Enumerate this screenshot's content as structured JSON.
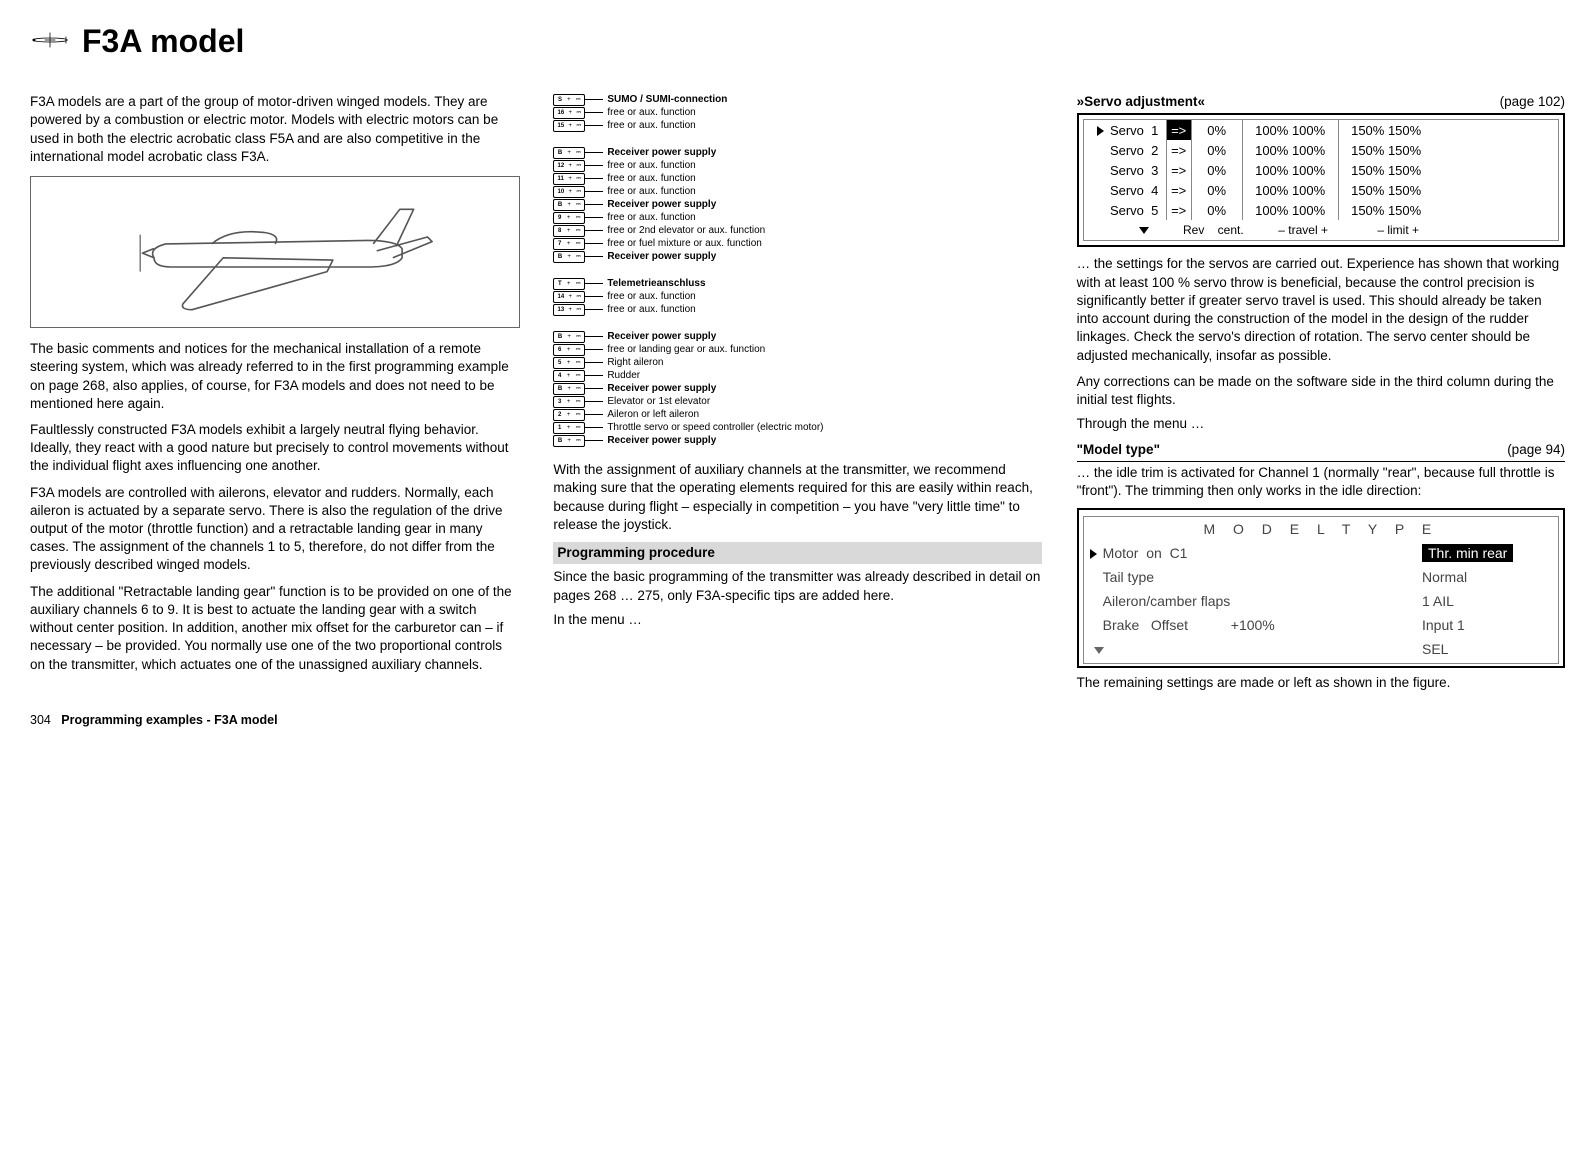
{
  "header": {
    "title": "F3A model"
  },
  "col1": {
    "p1": "F3A models are a part of the group of motor-driven winged models. They are powered by a combustion or electric motor. Models with electric motors can be used in both the electric acrobatic class F5A and are also competitive in the international model acrobatic class F3A.",
    "p2": "The basic comments and notices for the mechanical installation of a remote steering system, which was already referred to in the first programming example on page 268, also applies, of course, for F3A models and does not need to be mentioned here again.",
    "p3": "Faultlessly constructed F3A models exhibit a largely neutral flying behavior. Ideally, they react with a good nature but precisely to control movements without the individual flight axes influencing one another.",
    "p4": "F3A models are controlled with ailerons, elevator and rudders. Normally, each aileron is actuated by a separate servo. There is also the regulation of the drive output of the motor (throttle function) and a retractable landing gear in many cases. The assignment of the channels 1 to 5, therefore, do not differ from the previously described winged models.",
    "p5": "The additional \"Retractable landing gear\" function is to be provided on one of the auxiliary channels 6 to 9. It is best to actuate the landing gear with a switch without center position. In addition, another mix offset for the carburetor can – if necessary – be provided. You normally use one of the two proportional controls on the transmitter, which actuates one of the unassigned auxiliary channels."
  },
  "col2": {
    "rx_groups": [
      [
        {
          "n": "S",
          "label": "SUMO / SUMI-connection",
          "bold": true
        },
        {
          "n": "16",
          "label": "free or aux. function",
          "bold": false
        },
        {
          "n": "15",
          "label": "free or aux. function",
          "bold": false
        }
      ],
      [
        {
          "n": "B",
          "label": "Receiver power supply",
          "bold": true
        },
        {
          "n": "12",
          "label": "free or aux. function",
          "bold": false
        },
        {
          "n": "11",
          "label": "free or aux. function",
          "bold": false
        },
        {
          "n": "10",
          "label": "free or aux. function",
          "bold": false
        },
        {
          "n": "B",
          "label": "Receiver power supply",
          "bold": true
        },
        {
          "n": "9",
          "label": "free or aux. function",
          "bold": false
        },
        {
          "n": "8",
          "label": "free or 2nd elevator or aux. function",
          "bold": false
        },
        {
          "n": "7",
          "label": "free or fuel mixture or aux. function",
          "bold": false
        },
        {
          "n": "B",
          "label": "Receiver power supply",
          "bold": true
        }
      ],
      [
        {
          "n": "T",
          "label": "Telemetrieanschluss",
          "bold": true
        },
        {
          "n": "14",
          "label": "free or aux. function",
          "bold": false
        },
        {
          "n": "13",
          "label": "free or aux. function",
          "bold": false
        }
      ],
      [
        {
          "n": "B",
          "label": "Receiver power supply",
          "bold": true
        },
        {
          "n": "6",
          "label": "free or landing gear or aux. function",
          "bold": false
        },
        {
          "n": "5",
          "label": "Right aileron",
          "bold": false
        },
        {
          "n": "4",
          "label": "Rudder",
          "bold": false
        },
        {
          "n": "B",
          "label": "Receiver power supply",
          "bold": true
        },
        {
          "n": "3",
          "label": "Elevator or 1st elevator",
          "bold": false
        },
        {
          "n": "2",
          "label": "Aileron or left aileron",
          "bold": false
        },
        {
          "n": "1",
          "label": "Throttle servo or speed controller (electric motor)",
          "bold": false
        },
        {
          "n": "B",
          "label": "Receiver power supply",
          "bold": true
        }
      ]
    ],
    "p_after_rx": "With the assignment of auxiliary channels at the transmitter, we recommend making sure that the operating elements required for this are easily within reach, because during flight – especially in competition – you have \"very little time\" to release the joystick.",
    "section_bar": "Programming procedure",
    "p_prog1": "Since the basic programming of the transmitter was already described in detail on pages 268 … 275, only F3A-specific tips are added here.",
    "p_prog2": "In the menu …"
  },
  "col3": {
    "servo_header_title": "»Servo adjustment«",
    "servo_header_page": "(page 102)",
    "servo_rows": [
      {
        "name": "Servo  1",
        "arrow": "=>",
        "cent": "0%",
        "travel": "100% 100%",
        "limit": "150% 150%",
        "hl": true,
        "tri": true
      },
      {
        "name": "Servo  2",
        "arrow": "=>",
        "cent": "0%",
        "travel": "100% 100%",
        "limit": "150% 150%",
        "hl": false,
        "tri": false
      },
      {
        "name": "Servo  3",
        "arrow": "=>",
        "cent": "0%",
        "travel": "100% 100%",
        "limit": "150% 150%",
        "hl": false,
        "tri": false
      },
      {
        "name": "Servo  4",
        "arrow": "=>",
        "cent": "0%",
        "travel": "100% 100%",
        "limit": "150% 150%",
        "hl": false,
        "tri": false
      },
      {
        "name": "Servo  5",
        "arrow": "=>",
        "cent": "0%",
        "travel": "100% 100%",
        "limit": "150% 150%",
        "hl": false,
        "tri": false
      }
    ],
    "servo_footer": {
      "rev": "Rev",
      "cent": "cent.",
      "travel": "– travel +",
      "limit": "– limit +"
    },
    "p_servo1": "… the settings for the servos are carried out. Experience has shown that working with at least 100 % servo throw is beneficial, because the control precision is significantly better if greater servo travel is used. This should already be taken into account during the construction of the model in the design of the rudder linkages. Check the servo's direction of rotation. The servo center should be adjusted mechanically, insofar as possible.",
    "p_servo2": "Any corrections can be made on the software side in the third column during the initial test flights.",
    "p_servo3": "Through the menu …",
    "model_header_title": "\"Model type\"",
    "model_header_page": "(page 94)",
    "p_model1": "… the idle trim is activated for Channel 1 (normally \"rear\", because full throttle is \"front\"). The trimming then only works in the idle direction:",
    "model_box": {
      "title": "M O D E L   T Y P E",
      "rows": [
        {
          "label": "Motor  on  C1",
          "val": "Thr. min rear",
          "inv": true,
          "tri": true
        },
        {
          "label": "Tail type",
          "val": "Normal",
          "inv": false,
          "tri": false
        },
        {
          "label": "Aileron/camber flaps",
          "val": "1 AIL",
          "inv": false,
          "tri": false
        },
        {
          "label": "Brake   Offset           +100%",
          "val": "Input 1",
          "inv": false,
          "tri": false
        }
      ],
      "sel": "SEL"
    },
    "p_model2": "The remaining settings are made or left as shown in the figure."
  },
  "footer": {
    "page_no": "304",
    "label": "Programming examples - F3A model"
  }
}
